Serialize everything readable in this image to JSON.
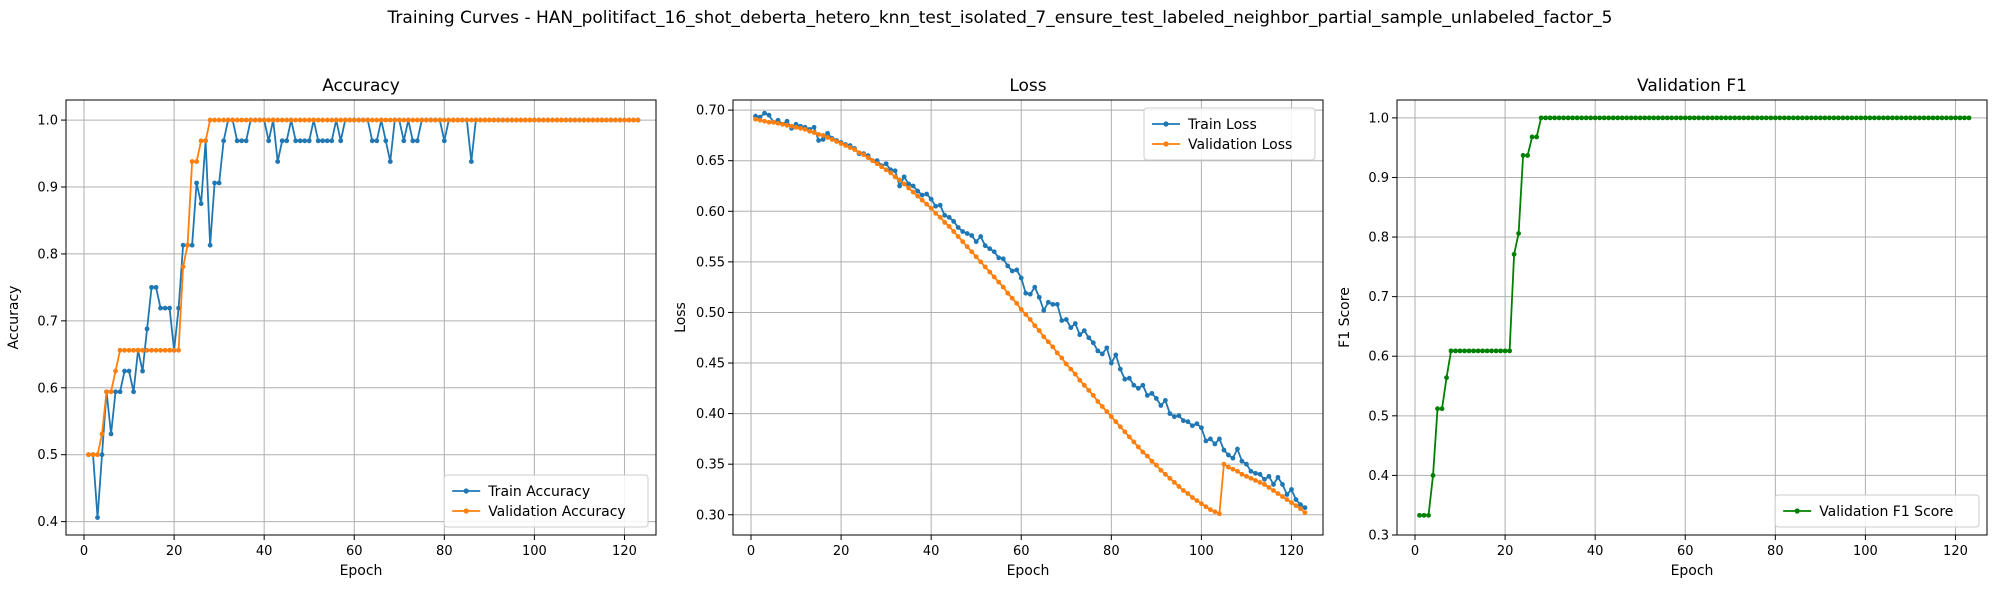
{
  "figure": {
    "title": "Training Curves - HAN_politifact_16_shot_deberta_hetero_knn_test_isolated_7_ensure_test_labeled_neighbor_partial_sample_unlabeled_factor_5"
  },
  "colors": {
    "blue": "#1f77b4",
    "orange": "#ff7f0e",
    "green": "#008000",
    "grid": "#b0b0b0"
  },
  "chart_data": [
    {
      "type": "line",
      "title": "Accuracy",
      "xlabel": "Epoch",
      "ylabel": "Accuracy",
      "xlim": [
        -4,
        127
      ],
      "ylim": [
        0.38,
        1.03
      ],
      "xticks": [
        0,
        20,
        40,
        60,
        80,
        100,
        120
      ],
      "yticks": [
        0.4,
        0.5,
        0.6,
        0.7,
        0.8,
        0.9,
        1.0
      ],
      "grid": true,
      "legend_position": "lower-right",
      "x_start": 1,
      "series": [
        {
          "name": "Train Accuracy",
          "color": "#1f77b4",
          "values": [
            0.5,
            0.5,
            0.406,
            0.5,
            0.594,
            0.531,
            0.594,
            0.594,
            0.625,
            0.625,
            0.594,
            0.656,
            0.625,
            0.688,
            0.75,
            0.75,
            0.719,
            0.719,
            0.719,
            0.656,
            0.719,
            0.813,
            0.813,
            0.813,
            0.906,
            0.875,
            0.969,
            0.813,
            0.906,
            0.906,
            0.969,
            1,
            1,
            0.969,
            0.969,
            0.969,
            1,
            1,
            1,
            1,
            0.969,
            1,
            0.938,
            0.969,
            0.969,
            1,
            0.969,
            0.969,
            0.969,
            0.969,
            1,
            0.969,
            0.969,
            0.969,
            0.969,
            1,
            0.969,
            1,
            1,
            1,
            1,
            1,
            1,
            0.969,
            0.969,
            1,
            0.969,
            0.938,
            1,
            1,
            0.969,
            1,
            0.969,
            0.969,
            1,
            1,
            1,
            1,
            1,
            0.969,
            1,
            1,
            1,
            1,
            1,
            0.938,
            1,
            1,
            1,
            1,
            1,
            1,
            1,
            1,
            1,
            1,
            1,
            1,
            1,
            1,
            1,
            1,
            1,
            1,
            1,
            1,
            1,
            1,
            1,
            1,
            1,
            1,
            1,
            1,
            1,
            1,
            1,
            1,
            1,
            1,
            1,
            1,
            1
          ]
        },
        {
          "name": "Validation Accuracy",
          "color": "#ff7f0e",
          "values": [
            0.5,
            0.5,
            0.5,
            0.531,
            0.594,
            0.594,
            0.625,
            0.656,
            0.656,
            0.656,
            0.656,
            0.656,
            0.656,
            0.656,
            0.656,
            0.656,
            0.656,
            0.656,
            0.656,
            0.656,
            0.656,
            0.781,
            0.813,
            0.938,
            0.938,
            0.969,
            0.969,
            1,
            1,
            1,
            1,
            1,
            1,
            1,
            1,
            1,
            1,
            1,
            1,
            1,
            1,
            1,
            1,
            1,
            1,
            1,
            1,
            1,
            1,
            1,
            1,
            1,
            1,
            1,
            1,
            1,
            1,
            1,
            1,
            1,
            1,
            1,
            1,
            1,
            1,
            1,
            1,
            1,
            1,
            1,
            1,
            1,
            1,
            1,
            1,
            1,
            1,
            1,
            1,
            1,
            1,
            1,
            1,
            1,
            1,
            1,
            1,
            1,
            1,
            1,
            1,
            1,
            1,
            1,
            1,
            1,
            1,
            1,
            1,
            1,
            1,
            1,
            1,
            1,
            1,
            1,
            1,
            1,
            1,
            1,
            1,
            1,
            1,
            1,
            1,
            1,
            1,
            1,
            1,
            1,
            1,
            1,
            1
          ]
        }
      ]
    },
    {
      "type": "line",
      "title": "Loss",
      "xlabel": "Epoch",
      "ylabel": "Loss",
      "xlim": [
        -4,
        127
      ],
      "ylim": [
        0.28,
        0.71
      ],
      "xticks": [
        0,
        20,
        40,
        60,
        80,
        100,
        120
      ],
      "yticks": [
        0.3,
        0.35,
        0.4,
        0.45,
        0.5,
        0.55,
        0.6,
        0.65,
        0.7
      ],
      "grid": true,
      "legend_position": "upper-right",
      "x_start": 1,
      "series": [
        {
          "name": "Train Loss",
          "color": "#1f77b4",
          "values": [
            0.694,
            0.693,
            0.697,
            0.695,
            0.688,
            0.69,
            0.686,
            0.689,
            0.682,
            0.686,
            0.684,
            0.683,
            0.681,
            0.683,
            0.67,
            0.671,
            0.677,
            0.672,
            0.67,
            0.668,
            0.666,
            0.665,
            0.662,
            0.657,
            0.657,
            0.655,
            0.65,
            0.65,
            0.645,
            0.647,
            0.641,
            0.64,
            0.625,
            0.634,
            0.627,
            0.625,
            0.62,
            0.616,
            0.617,
            0.612,
            0.605,
            0.606,
            0.596,
            0.594,
            0.59,
            0.584,
            0.58,
            0.578,
            0.576,
            0.57,
            0.575,
            0.566,
            0.563,
            0.56,
            0.554,
            0.553,
            0.546,
            0.541,
            0.542,
            0.534,
            0.519,
            0.518,
            0.525,
            0.515,
            0.502,
            0.51,
            0.508,
            0.508,
            0.492,
            0.493,
            0.485,
            0.489,
            0.478,
            0.482,
            0.475,
            0.47,
            0.462,
            0.459,
            0.465,
            0.45,
            0.458,
            0.444,
            0.434,
            0.435,
            0.428,
            0.425,
            0.428,
            0.418,
            0.42,
            0.415,
            0.408,
            0.413,
            0.4,
            0.397,
            0.398,
            0.393,
            0.392,
            0.388,
            0.39,
            0.386,
            0.373,
            0.375,
            0.37,
            0.375,
            0.364,
            0.359,
            0.356,
            0.365,
            0.353,
            0.35,
            0.343,
            0.341,
            0.34,
            0.335,
            0.338,
            0.33,
            0.337,
            0.33,
            0.32,
            0.325,
            0.315,
            0.31,
            0.307
          ]
        },
        {
          "name": "Validation Loss",
          "color": "#ff7f0e",
          "values": [
            0.691,
            0.69,
            0.689,
            0.688,
            0.688,
            0.687,
            0.686,
            0.685,
            0.684,
            0.683,
            0.682,
            0.681,
            0.679,
            0.678,
            0.676,
            0.675,
            0.673,
            0.671,
            0.669,
            0.667,
            0.665,
            0.663,
            0.661,
            0.658,
            0.656,
            0.653,
            0.65,
            0.647,
            0.644,
            0.641,
            0.638,
            0.634,
            0.631,
            0.627,
            0.623,
            0.619,
            0.615,
            0.611,
            0.607,
            0.603,
            0.598,
            0.594,
            0.589,
            0.585,
            0.58,
            0.575,
            0.57,
            0.565,
            0.56,
            0.555,
            0.55,
            0.545,
            0.54,
            0.535,
            0.53,
            0.525,
            0.519,
            0.514,
            0.509,
            0.503,
            0.498,
            0.493,
            0.487,
            0.482,
            0.476,
            0.471,
            0.466,
            0.46,
            0.455,
            0.449,
            0.444,
            0.439,
            0.433,
            0.428,
            0.423,
            0.418,
            0.412,
            0.407,
            0.402,
            0.397,
            0.392,
            0.387,
            0.382,
            0.377,
            0.372,
            0.367,
            0.362,
            0.358,
            0.353,
            0.349,
            0.344,
            0.34,
            0.336,
            0.332,
            0.328,
            0.324,
            0.321,
            0.317,
            0.314,
            0.311,
            0.308,
            0.305,
            0.303,
            0.301,
            0.35,
            0.347,
            0.345,
            0.343,
            0.34,
            0.338,
            0.336,
            0.334,
            0.332,
            0.33,
            0.327,
            0.324,
            0.321,
            0.318,
            0.315,
            0.312,
            0.309,
            0.306,
            0.302
          ]
        }
      ]
    },
    {
      "type": "line",
      "title": "Validation F1",
      "xlabel": "Epoch",
      "ylabel": "F1 Score",
      "xlim": [
        -4,
        127
      ],
      "ylim": [
        0.3,
        1.03
      ],
      "xticks": [
        0,
        20,
        40,
        60,
        80,
        100,
        120
      ],
      "yticks": [
        0.3,
        0.4,
        0.5,
        0.6,
        0.7,
        0.8,
        0.9,
        1.0
      ],
      "grid": true,
      "legend_position": "lower-right",
      "x_start": 1,
      "series": [
        {
          "name": "Validation F1 Score",
          "color": "#008000",
          "values": [
            0.333,
            0.333,
            0.333,
            0.4,
            0.512,
            0.512,
            0.564,
            0.609,
            0.609,
            0.609,
            0.609,
            0.609,
            0.609,
            0.609,
            0.609,
            0.609,
            0.609,
            0.609,
            0.609,
            0.609,
            0.609,
            0.771,
            0.806,
            0.937,
            0.937,
            0.968,
            0.968,
            1,
            1,
            1,
            1,
            1,
            1,
            1,
            1,
            1,
            1,
            1,
            1,
            1,
            1,
            1,
            1,
            1,
            1,
            1,
            1,
            1,
            1,
            1,
            1,
            1,
            1,
            1,
            1,
            1,
            1,
            1,
            1,
            1,
            1,
            1,
            1,
            1,
            1,
            1,
            1,
            1,
            1,
            1,
            1,
            1,
            1,
            1,
            1,
            1,
            1,
            1,
            1,
            1,
            1,
            1,
            1,
            1,
            1,
            1,
            1,
            1,
            1,
            1,
            1,
            1,
            1,
            1,
            1,
            1,
            1,
            1,
            1,
            1,
            1,
            1,
            1,
            1,
            1,
            1,
            1,
            1,
            1,
            1,
            1,
            1,
            1,
            1,
            1,
            1,
            1,
            1,
            1,
            1,
            1,
            1,
            1
          ]
        }
      ]
    }
  ]
}
